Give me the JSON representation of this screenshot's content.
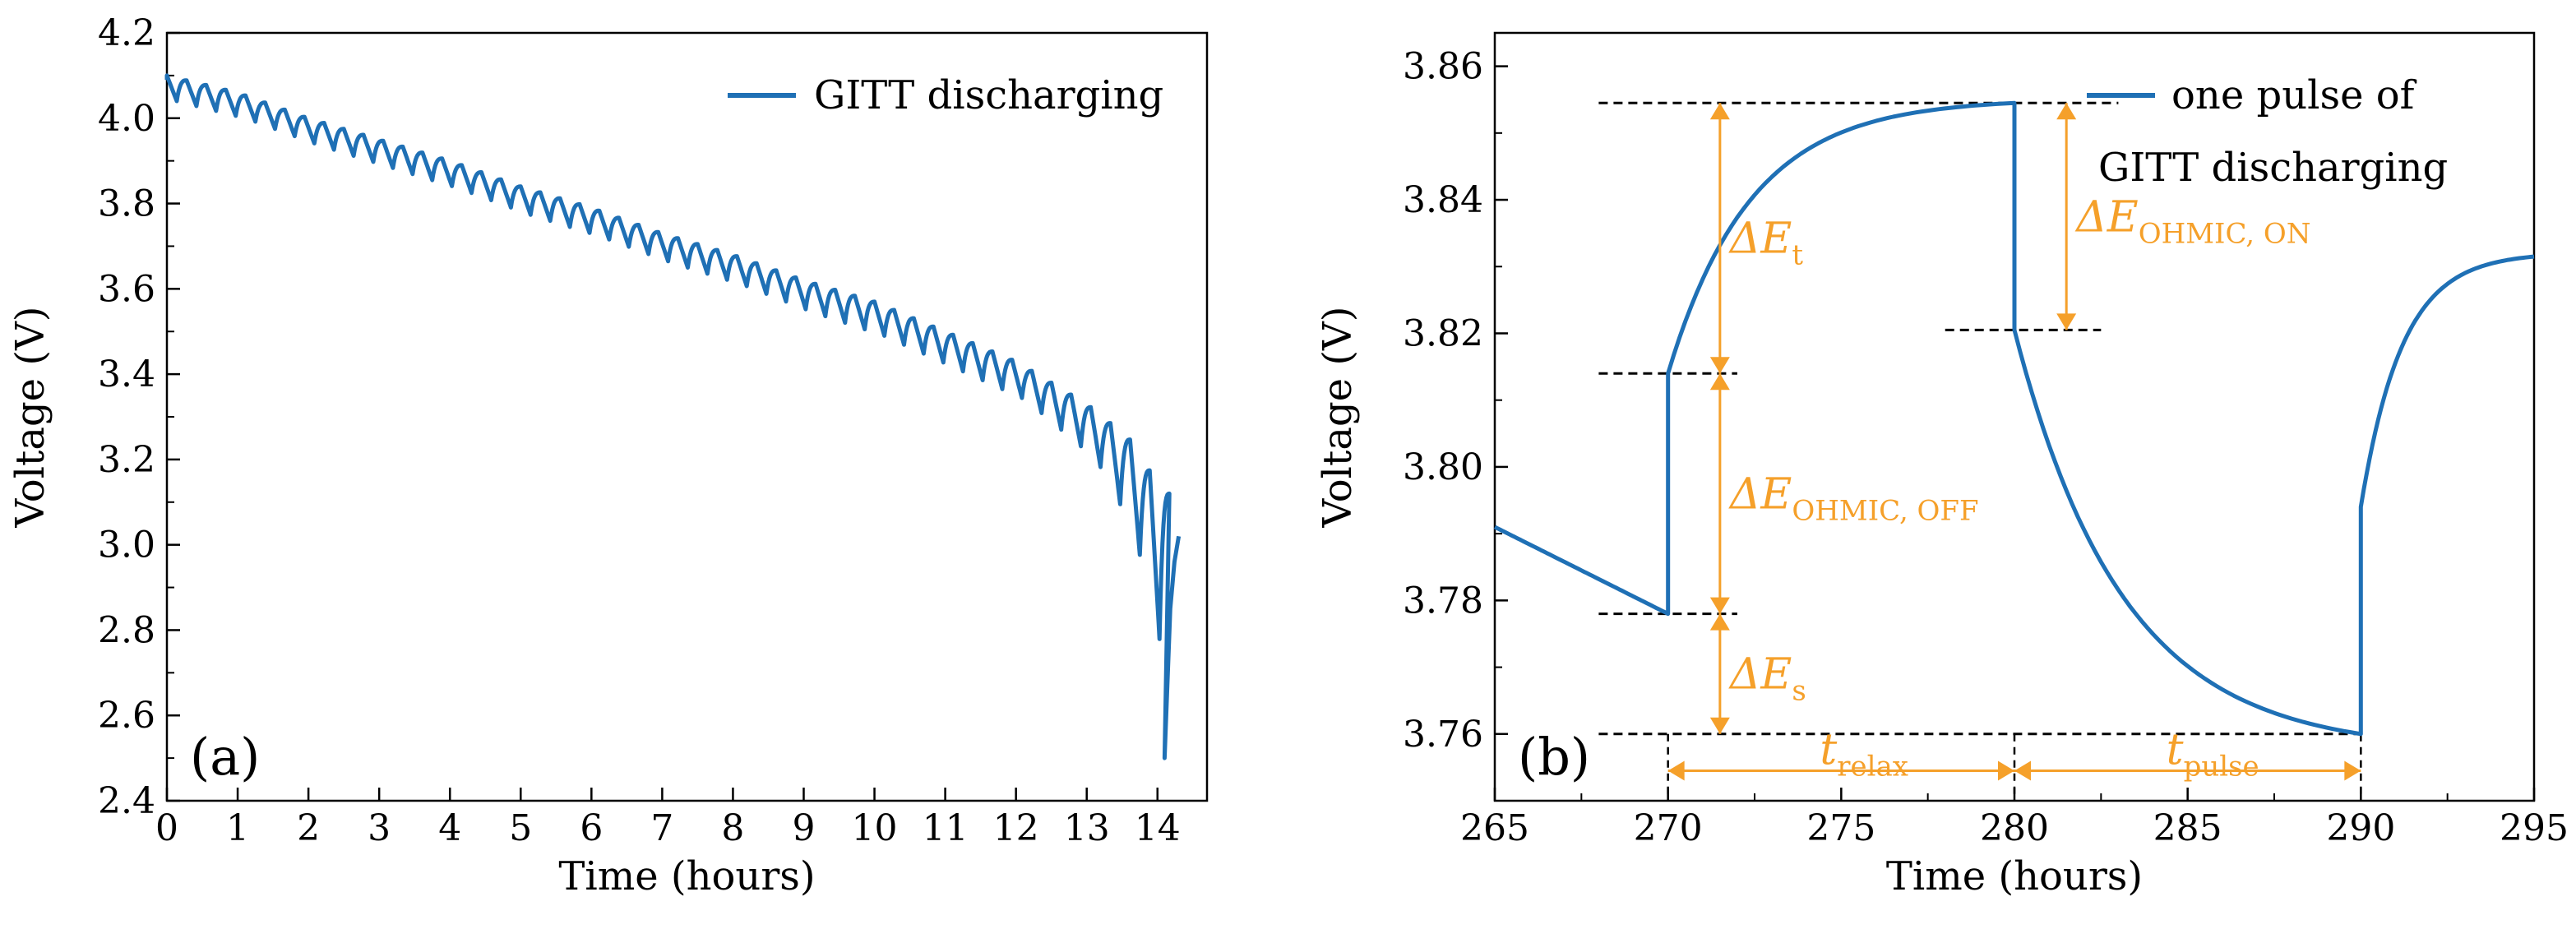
{
  "colors": {
    "series": "#1f70b5",
    "annotation": "#f5a02a",
    "axis": "#000000"
  },
  "chart_data": [
    {
      "type": "line",
      "panel": "(a)",
      "title": "",
      "xlabel": "Time (hours)",
      "ylabel": "Voltage (V)",
      "xlim": [
        0,
        14.7
      ],
      "ylim": [
        2.4,
        4.2
      ],
      "xticks": [
        0,
        1,
        2,
        3,
        4,
        5,
        6,
        7,
        8,
        9,
        10,
        11,
        12,
        13,
        14
      ],
      "yticks": [
        2.4,
        2.6,
        2.8,
        3.0,
        3.2,
        3.4,
        3.6,
        3.8,
        4.0,
        4.2
      ],
      "xtick_labels": [
        "0",
        "1",
        "2",
        "3",
        "4",
        "5",
        "6",
        "7",
        "8",
        "9",
        "10",
        "11",
        "12",
        "13",
        "14"
      ],
      "ytick_labels": [
        "2.4",
        "2.6",
        "2.8",
        "3.0",
        "3.2",
        "3.4",
        "3.6",
        "3.8",
        "4.0",
        "4.2"
      ],
      "grid": false,
      "legend_position": "top-right",
      "series": [
        {
          "name": "GITT discharging",
          "pulse_period_hours": 0.2778,
          "relax_top_start": [
            [
              0.0,
              4.1
            ],
            [
              1.0,
              4.06
            ],
            [
              2.0,
              4.0
            ],
            [
              3.0,
              3.95
            ],
            [
              4.0,
              3.9
            ],
            [
              5.0,
              3.84
            ],
            [
              6.0,
              3.79
            ],
            [
              7.0,
              3.73
            ],
            [
              8.0,
              3.68
            ],
            [
              9.0,
              3.62
            ],
            [
              10.0,
              3.57
            ],
            [
              11.0,
              3.5
            ],
            [
              12.0,
              3.43
            ],
            [
              13.0,
              3.33
            ],
            [
              13.6,
              3.25
            ],
            [
              14.1,
              3.12
            ]
          ],
          "pulse_depth": [
            [
              0.0,
              0.06
            ],
            [
              8.0,
              0.07
            ],
            [
              12.0,
              0.09
            ],
            [
              13.0,
              0.13
            ],
            [
              13.5,
              0.22
            ],
            [
              13.9,
              0.4
            ],
            [
              14.15,
              0.62
            ]
          ],
          "end_point": [
            14.3,
            3.02
          ],
          "minimum": [
            14.1,
            2.5
          ]
        }
      ]
    },
    {
      "type": "line",
      "panel": "(b)",
      "title": "",
      "xlabel": "Time (hours)",
      "ylabel": "Voltage (V)",
      "xlim": [
        265,
        295
      ],
      "ylim": [
        3.75,
        3.865
      ],
      "xticks": [
        265,
        270,
        275,
        280,
        285,
        290,
        295
      ],
      "yticks": [
        3.76,
        3.78,
        3.8,
        3.82,
        3.84,
        3.86
      ],
      "xtick_labels": [
        "265",
        "270",
        "275",
        "280",
        "285",
        "290",
        "295"
      ],
      "ytick_labels": [
        "3.76",
        "3.78",
        "3.80",
        "3.82",
        "3.84",
        "3.86"
      ],
      "grid": false,
      "legend_position": "top-right",
      "series": [
        {
          "name": "one pulse of GITT discharging",
          "legend_lines": [
            "one pulse of",
            "GITT discharging"
          ],
          "segments": [
            {
              "kind": "pulse_tail",
              "t_start": 265,
              "t_end": 270,
              "v_start": 3.791,
              "v_end": 3.778
            },
            {
              "kind": "ohmic_jump",
              "t": 270,
              "v_from": 3.778,
              "v_to": 3.814
            },
            {
              "kind": "relax",
              "t_start": 270,
              "t_end": 280,
              "v_start": 3.814,
              "v_end": 3.8545
            },
            {
              "kind": "ohmic_drop",
              "t": 280,
              "v_from": 3.8545,
              "v_to": 3.8205
            },
            {
              "kind": "pulse",
              "t_start": 280,
              "t_end": 290,
              "v_start": 3.8205,
              "v_end": 3.76
            },
            {
              "kind": "ohmic_jump",
              "t": 290,
              "v_from": 3.76,
              "v_to": 3.794
            },
            {
              "kind": "relax",
              "t_start": 290,
              "t_end": 295,
              "v_start": 3.794,
              "v_end": 3.8315
            }
          ]
        }
      ],
      "reference_lines": [
        {
          "v": 3.8545,
          "t_from": 268,
          "t_to": 283
        },
        {
          "v": 3.814,
          "t_from": 268,
          "t_to": 272
        },
        {
          "v": 3.8205,
          "t_from": 278,
          "t_to": 282.5
        },
        {
          "v": 3.778,
          "t_from": 268,
          "t_to": 272
        },
        {
          "v": 3.76,
          "t_from": 268,
          "t_to": 290
        }
      ],
      "vertical_dashed": [
        270,
        280,
        290
      ],
      "annotations": [
        {
          "main": "ΔE",
          "sub": "t",
          "t_arrow": 271.5,
          "v_from": 3.814,
          "v_to": 3.8545
        },
        {
          "main": "ΔE",
          "sub": "OHMIC, ON",
          "t_arrow": 281.5,
          "v_from": 3.8205,
          "v_to": 3.8545
        },
        {
          "main": "ΔE",
          "sub": "OHMIC, OFF",
          "t_arrow": 271.5,
          "v_from": 3.778,
          "v_to": 3.814
        },
        {
          "main": "ΔE",
          "sub": "s",
          "t_arrow": 271.5,
          "v_from": 3.76,
          "v_to": 3.778
        },
        {
          "main": "t",
          "sub": "relax",
          "v_arrow": 3.7545,
          "t_from": 270,
          "t_to": 280
        },
        {
          "main": "t",
          "sub": "pulse",
          "v_arrow": 3.7545,
          "t_from": 280,
          "t_to": 290
        }
      ]
    }
  ]
}
